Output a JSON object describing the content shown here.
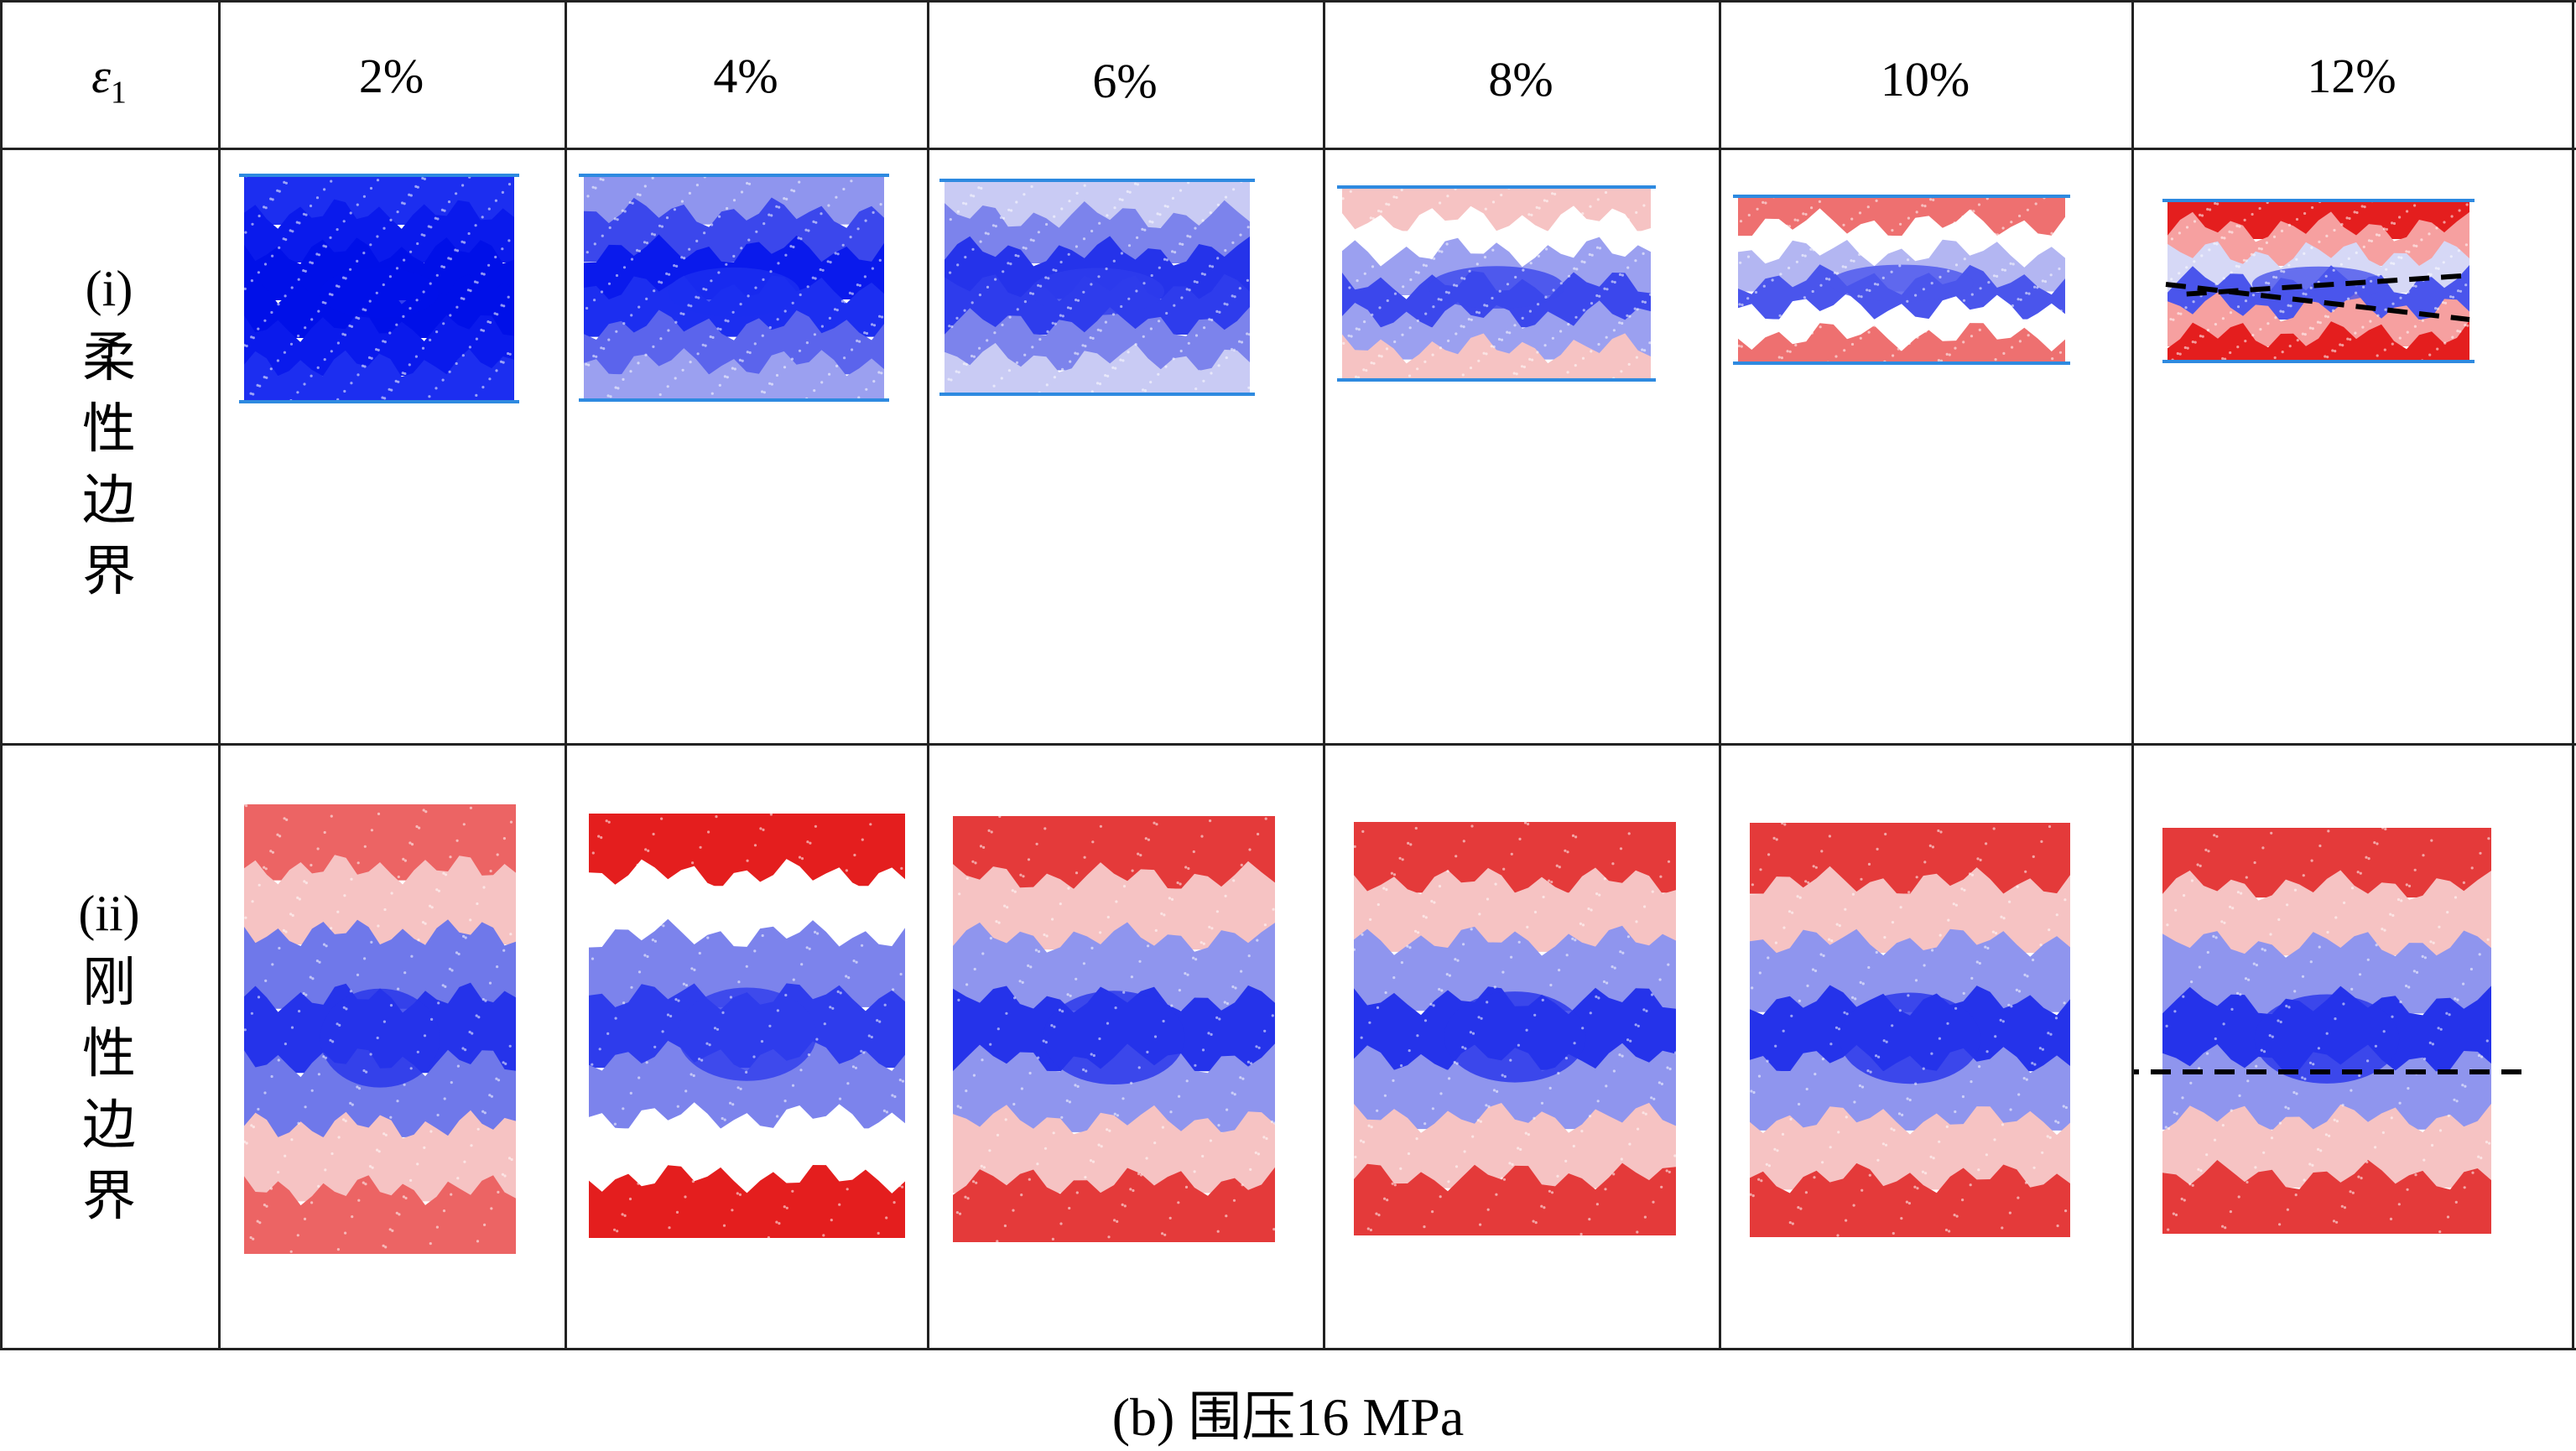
{
  "table": {
    "corner_label": "ε",
    "corner_subscript": "1",
    "columns": [
      "2%",
      "4%",
      "6%",
      "8%",
      "10%",
      "12%"
    ],
    "rows": [
      {
        "id": "flexible",
        "label_en": "(i)",
        "label_cn": [
          "柔",
          "性",
          "边",
          "界"
        ]
      },
      {
        "id": "rigid",
        "label_en": "(ii)",
        "label_cn": [
          "刚",
          "性",
          "边",
          "界"
        ]
      }
    ]
  },
  "caption": {
    "prefix": "(b) ",
    "text_cn": "围压",
    "text_value": "16 MPa"
  },
  "colors": {
    "boundary_line": "#2e8ae0",
    "deep_blue": "#0010e8",
    "mid_blue": "#6f78ea",
    "light_blue": "#c9cbf4",
    "white": "#ffffff",
    "light_red": "#f6c3c3",
    "mid_red": "#ee7070",
    "deep_red": "#e41e1e",
    "dashed_line": "#000000"
  },
  "specimen_fields": {
    "flexible": [
      {
        "strain": "2%",
        "bands": [
          "#1c2ef0",
          "#0a1aec",
          "#0010e8",
          "#0010e8",
          "#0a1aec",
          "#1c2ef0"
        ],
        "boundary_lines": true,
        "failure_lines": "none"
      },
      {
        "strain": "4%",
        "bands": [
          "#8f95ee",
          "#3b47ec",
          "#0a1aec",
          "#1c2ef0",
          "#5b64ec",
          "#9ba0f0"
        ],
        "boundary_lines": true,
        "failure_lines": "none"
      },
      {
        "strain": "6%",
        "bands": [
          "#c9cbf4",
          "#7c83ec",
          "#2533ea",
          "#2e3cec",
          "#7c83ec",
          "#c9cbf4"
        ],
        "boundary_lines": true,
        "failure_lines": "none"
      },
      {
        "strain": "8%",
        "bands": [
          "#f6c3c3",
          "#ffffff",
          "#9ba0f0",
          "#3b47ec",
          "#9ba0f0",
          "#f6c3c3"
        ],
        "boundary_lines": true,
        "failure_lines": "none"
      },
      {
        "strain": "10%",
        "bands": [
          "#ee7070",
          "#ffffff",
          "#b3b6f2",
          "#4a55ec",
          "#ffffff",
          "#ee7070"
        ],
        "boundary_lines": true,
        "failure_lines": "none"
      },
      {
        "strain": "12%",
        "bands": [
          "#e41e1e",
          "#f6a0a0",
          "#d6d8f6",
          "#4a55ec",
          "#f6a0a0",
          "#e41e1e"
        ],
        "boundary_lines": true,
        "failure_lines": "x"
      }
    ],
    "rigid": [
      {
        "strain": "2%",
        "bands": [
          "#ec6464",
          "#f6c3c3",
          "#6f78ea",
          "#2533ea",
          "#6f78ea",
          "#f6c3c3",
          "#ec6464"
        ],
        "boundary_lines": false,
        "failure_lines": "none"
      },
      {
        "strain": "4%",
        "bands": [
          "#e41e1e",
          "#ffffff",
          "#7c83ec",
          "#2e3cec",
          "#7c83ec",
          "#ffffff",
          "#e41e1e"
        ],
        "boundary_lines": false,
        "failure_lines": "none"
      },
      {
        "strain": "6%",
        "bands": [
          "#e43a3a",
          "#f6c3c3",
          "#8f95ee",
          "#2533ea",
          "#8f95ee",
          "#f6c3c3",
          "#e43a3a"
        ],
        "boundary_lines": false,
        "failure_lines": "none"
      },
      {
        "strain": "8%",
        "bands": [
          "#e43a3a",
          "#f6c3c3",
          "#8f95ee",
          "#2533ea",
          "#8f95ee",
          "#f6c3c3",
          "#e43a3a"
        ],
        "boundary_lines": false,
        "failure_lines": "none"
      },
      {
        "strain": "10%",
        "bands": [
          "#e43a3a",
          "#f6c3c3",
          "#8f95ee",
          "#2533ea",
          "#8f95ee",
          "#f6c3c3",
          "#e43a3a"
        ],
        "boundary_lines": false,
        "failure_lines": "none"
      },
      {
        "strain": "12%",
        "bands": [
          "#e43a3a",
          "#f6c3c3",
          "#8f95ee",
          "#2533ea",
          "#8f95ee",
          "#f6c3c3",
          "#e43a3a"
        ],
        "boundary_lines": false,
        "failure_lines": "horizontal"
      }
    ]
  }
}
